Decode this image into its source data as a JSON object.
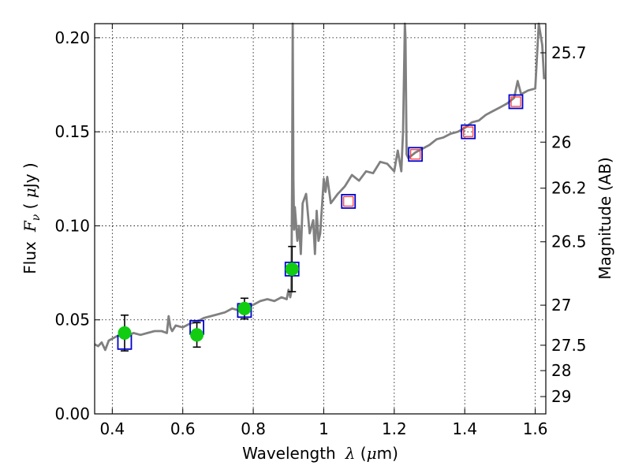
{
  "chart_data": {
    "type": "scatter",
    "xlabel": "Wavelength",
    "xlabel_symbol": "λ",
    "xlabel_unit_open": " (",
    "xlabel_unit_mu": "μ",
    "xlabel_unit_rest": "m)",
    "ylabel": "Flux",
    "ylabel_symbol": "F",
    "ylabel_subscript": "ν",
    "ylabel_unit_open": " ( ",
    "ylabel_unit_mu": "μ",
    "ylabel_unit_rest": "Jy )",
    "y2label": "Magnitude (AB)",
    "xlim": [
      0.35,
      1.63
    ],
    "ylim": [
      0.0,
      0.2075
    ],
    "grid": true,
    "x_ticks": [
      {
        "value": 0.4,
        "label": "0.4"
      },
      {
        "value": 0.6,
        "label": "0.6"
      },
      {
        "value": 0.8,
        "label": "0.8"
      },
      {
        "value": 1.0,
        "label": "1"
      },
      {
        "value": 1.2,
        "label": "1.2"
      },
      {
        "value": 1.4,
        "label": "1.4"
      },
      {
        "value": 1.6,
        "label": "1.6"
      }
    ],
    "y_ticks": [
      {
        "value": 0.0,
        "label": "0.00"
      },
      {
        "value": 0.05,
        "label": "0.05"
      },
      {
        "value": 0.1,
        "label": "0.10"
      },
      {
        "value": 0.15,
        "label": "0.15"
      },
      {
        "value": 0.2,
        "label": "0.20"
      }
    ],
    "y2_ticks": [
      {
        "flux": 0.192,
        "label": "25.7"
      },
      {
        "flux": 0.1445,
        "label": "26"
      },
      {
        "flux": 0.12,
        "label": "26.2"
      },
      {
        "flux": 0.0915,
        "label": "26.5"
      },
      {
        "flux": 0.0578,
        "label": "27"
      },
      {
        "flux": 0.0365,
        "label": "27.5"
      },
      {
        "flux": 0.023,
        "label": "28"
      },
      {
        "flux": 0.0092,
        "label": "29"
      }
    ],
    "model_spectrum": {
      "color": "#808080",
      "x": [
        0.35,
        0.36,
        0.37,
        0.38,
        0.39,
        0.4,
        0.42,
        0.44,
        0.46,
        0.48,
        0.5,
        0.52,
        0.54,
        0.555,
        0.56,
        0.565,
        0.57,
        0.58,
        0.6,
        0.62,
        0.64,
        0.66,
        0.68,
        0.7,
        0.72,
        0.74,
        0.76,
        0.78,
        0.8,
        0.82,
        0.84,
        0.86,
        0.88,
        0.895,
        0.9,
        0.905,
        0.908,
        0.91,
        0.912,
        0.914,
        0.916,
        0.918,
        0.92,
        0.925,
        0.93,
        0.935,
        0.94,
        0.95,
        0.96,
        0.97,
        0.975,
        0.98,
        0.985,
        0.99,
        1.0,
        1.005,
        1.01,
        1.02,
        1.04,
        1.06,
        1.08,
        1.1,
        1.12,
        1.14,
        1.16,
        1.18,
        1.2,
        1.21,
        1.22,
        1.225,
        1.228,
        1.23,
        1.232,
        1.235,
        1.24,
        1.26,
        1.28,
        1.3,
        1.32,
        1.34,
        1.36,
        1.38,
        1.4,
        1.42,
        1.44,
        1.46,
        1.48,
        1.5,
        1.52,
        1.54,
        1.55,
        1.56,
        1.58,
        1.6,
        1.605,
        1.61,
        1.62,
        1.625
      ],
      "y": [
        0.037,
        0.036,
        0.038,
        0.034,
        0.039,
        0.04,
        0.042,
        0.041,
        0.043,
        0.042,
        0.043,
        0.044,
        0.044,
        0.043,
        0.052,
        0.046,
        0.044,
        0.047,
        0.046,
        0.048,
        0.049,
        0.051,
        0.052,
        0.053,
        0.054,
        0.056,
        0.055,
        0.057,
        0.058,
        0.06,
        0.061,
        0.06,
        0.062,
        0.061,
        0.066,
        0.062,
        0.065,
        0.12,
        0.208,
        0.125,
        0.098,
        0.11,
        0.105,
        0.092,
        0.1,
        0.085,
        0.112,
        0.117,
        0.096,
        0.103,
        0.085,
        0.108,
        0.092,
        0.096,
        0.125,
        0.118,
        0.126,
        0.112,
        0.117,
        0.121,
        0.127,
        0.124,
        0.129,
        0.128,
        0.134,
        0.133,
        0.129,
        0.14,
        0.129,
        0.15,
        0.185,
        0.208,
        0.2,
        0.138,
        0.136,
        0.139,
        0.141,
        0.143,
        0.146,
        0.147,
        0.149,
        0.15,
        0.152,
        0.155,
        0.156,
        0.159,
        0.161,
        0.163,
        0.165,
        0.168,
        0.177,
        0.17,
        0.172,
        0.173,
        0.19,
        0.208,
        0.196,
        0.178
      ]
    },
    "model_photometry": {
      "marker": "square",
      "color": "#0000cc",
      "x": [
        0.435,
        0.64,
        0.775,
        0.91,
        1.07,
        1.26,
        1.41,
        1.545
      ],
      "y": [
        0.038,
        0.046,
        0.055,
        0.077,
        0.113,
        0.138,
        0.15,
        0.166
      ]
    },
    "model_photometry_inner": {
      "marker": "square",
      "color": "#ff3333",
      "x": [
        1.07,
        1.26,
        1.41,
        1.545
      ],
      "y": [
        0.113,
        0.138,
        0.15,
        0.166
      ]
    },
    "observed_photometry": {
      "marker": "circle",
      "color": "#11cc11",
      "x": [
        0.435,
        0.64,
        0.775,
        0.91
      ],
      "y": [
        0.043,
        0.042,
        0.056,
        0.077
      ],
      "yerr_low": [
        0.0335,
        0.0355,
        0.0505,
        0.065
      ],
      "yerr_high": [
        0.0525,
        0.0485,
        0.0615,
        0.089
      ]
    }
  }
}
